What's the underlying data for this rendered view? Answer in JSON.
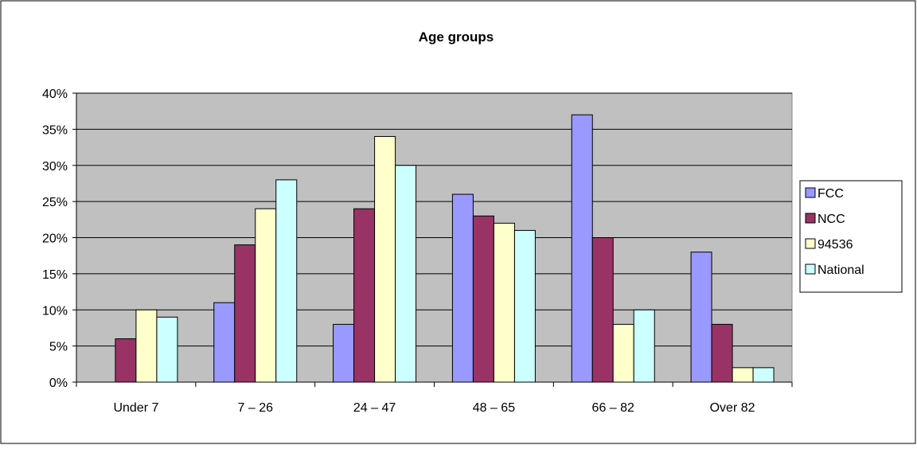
{
  "chart_data": {
    "type": "bar",
    "title": "Age groups",
    "categories": [
      "Under 7",
      "7 – 26",
      "24 – 47",
      "48 – 65",
      "66 – 82",
      "Over 82"
    ],
    "series": [
      {
        "name": "FCC",
        "color": "#9999ff",
        "values": [
          0,
          11,
          8,
          26,
          37,
          18
        ]
      },
      {
        "name": "NCC",
        "color": "#993366",
        "values": [
          6,
          19,
          24,
          23,
          20,
          8
        ]
      },
      {
        "name": "94536",
        "color": "#ffffcc",
        "values": [
          10,
          24,
          34,
          22,
          8,
          2
        ]
      },
      {
        "name": "National",
        "color": "#ccffff",
        "values": [
          9,
          28,
          30,
          21,
          10,
          2
        ]
      }
    ],
    "ylim": [
      0,
      40
    ],
    "yticks": [
      0,
      5,
      10,
      15,
      20,
      25,
      30,
      35,
      40
    ],
    "ytick_labels": [
      "0%",
      "5%",
      "10%",
      "15%",
      "20%",
      "25%",
      "30%",
      "35%",
      "40%"
    ],
    "plot_background": "#c0c0c0",
    "grid": true,
    "legend_position": "right"
  }
}
